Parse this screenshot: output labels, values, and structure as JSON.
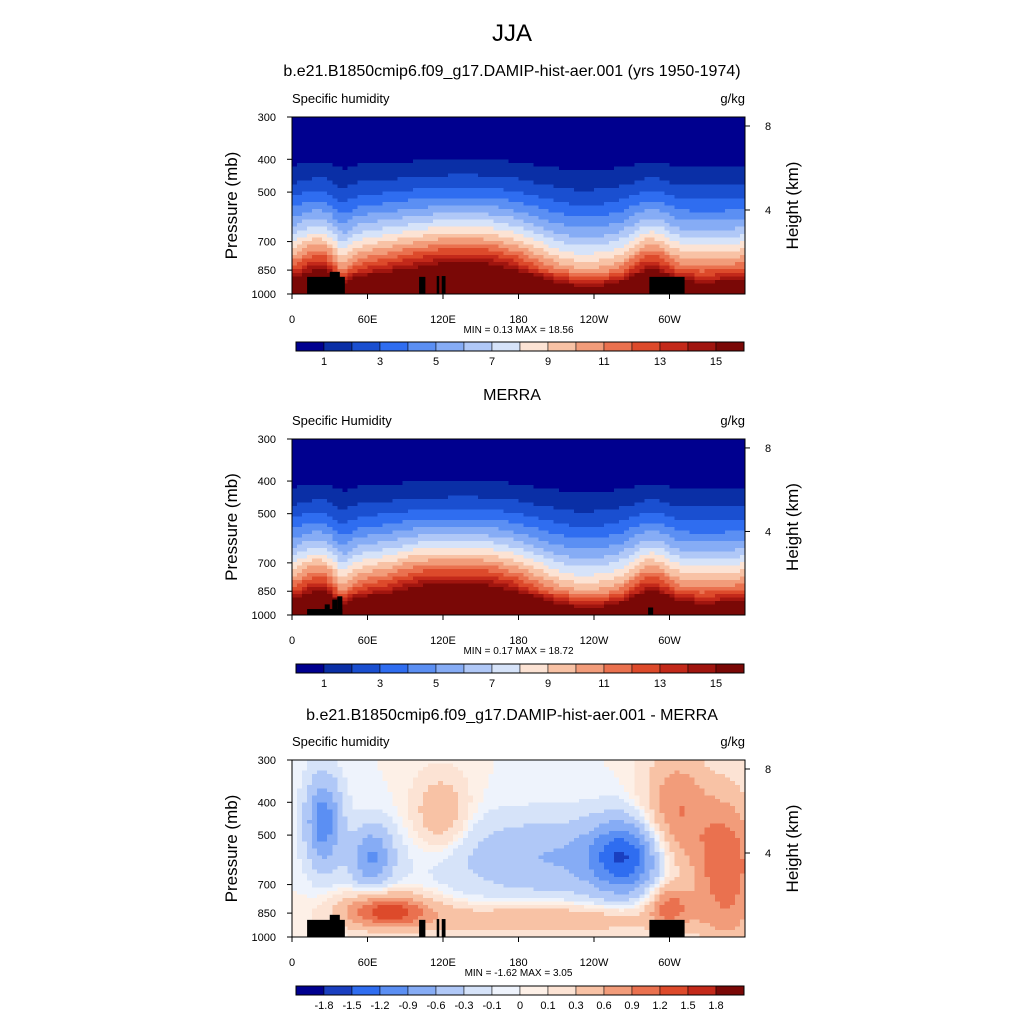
{
  "figure": {
    "main_title": "JJA",
    "colors": {
      "abs_palette": [
        "#00008f",
        "#0a2fa6",
        "#1a4fd0",
        "#2f6df0",
        "#5b8ff3",
        "#86acf5",
        "#b0c8f7",
        "#d6e3f9",
        "#fce3d4",
        "#f8c2a5",
        "#f29c7a",
        "#ea714f",
        "#dd4a2b",
        "#c3291a",
        "#a0150f",
        "#7a0806"
      ],
      "diff_palette": [
        "#00008f",
        "#1a3fc0",
        "#2f6df0",
        "#5b8ff3",
        "#86acf5",
        "#b0c8f7",
        "#d6e3f9",
        "#eef3fc",
        "#fdf0e7",
        "#fce3d4",
        "#f8c2a5",
        "#f29c7a",
        "#ea714f",
        "#dd4a2b",
        "#c3291a",
        "#7a0806"
      ],
      "topography": "#000000"
    }
  },
  "chart_data": [
    {
      "type": "heatmap",
      "title": "b.e21.B1850cmip6.f09_g17.DAMIP-hist-aer.001 (yrs 1950-1974)",
      "left_label": "Specific humidity",
      "units": "g/kg",
      "ylabel": "Pressure (mb)",
      "ylabel_right": "Height (km)",
      "x_ticks": [
        "0",
        "60E",
        "120E",
        "180",
        "120W",
        "60W"
      ],
      "x_tick_lon": [
        0,
        60,
        120,
        180,
        240,
        300
      ],
      "y_ticks": [
        300,
        400,
        500,
        700,
        850,
        1000
      ],
      "y_ticks_right": [
        8,
        4
      ],
      "ylim": [
        300,
        1000
      ],
      "xlim": [
        0,
        360
      ],
      "stats": "MIN =   0.13  MAX =  18.56",
      "min": 0.13,
      "max": 18.56,
      "colorbar_labels": [
        "1",
        "3",
        "5",
        "7",
        "9",
        "11",
        "13",
        "15"
      ],
      "kind": "abs",
      "topography": [
        [
          12,
          42,
          890
        ],
        [
          30,
          38,
          860
        ],
        [
          101,
          106,
          890
        ],
        [
          115,
          117,
          885
        ],
        [
          119,
          122,
          885
        ],
        [
          284,
          312,
          890
        ]
      ]
    },
    {
      "type": "heatmap",
      "title": "MERRA",
      "left_label": "Specific Humidity",
      "units": "g/kg",
      "ylabel": "Pressure (mb)",
      "ylabel_right": "Height (km)",
      "x_ticks": [
        "0",
        "60E",
        "120E",
        "180",
        "120W",
        "60W"
      ],
      "x_tick_lon": [
        0,
        60,
        120,
        180,
        240,
        300
      ],
      "y_ticks": [
        300,
        400,
        500,
        700,
        850,
        1000
      ],
      "y_ticks_right": [
        8,
        4
      ],
      "ylim": [
        300,
        1000
      ],
      "xlim": [
        0,
        360
      ],
      "stats": "MIN =   0.17  MAX =  18.72",
      "min": 0.17,
      "max": 18.72,
      "colorbar_labels": [
        "1",
        "3",
        "5",
        "7",
        "9",
        "11",
        "13",
        "15"
      ],
      "kind": "abs",
      "topography": [
        [
          12,
          40,
          960
        ],
        [
          26,
          30,
          930
        ],
        [
          32,
          36,
          900
        ],
        [
          36,
          40,
          880
        ],
        [
          283,
          287,
          950
        ]
      ]
    },
    {
      "type": "heatmap",
      "title": "b.e21.B1850cmip6.f09_g17.DAMIP-hist-aer.001 - MERRA",
      "left_label": "Specific humidity",
      "units": "g/kg",
      "ylabel": "Pressure (mb)",
      "ylabel_right": "Height (km)",
      "x_ticks": [
        "0",
        "60E",
        "120E",
        "180",
        "120W",
        "60W"
      ],
      "x_tick_lon": [
        0,
        60,
        120,
        180,
        240,
        300
      ],
      "y_ticks": [
        300,
        400,
        500,
        700,
        850,
        1000
      ],
      "y_ticks_right": [
        8,
        4
      ],
      "ylim": [
        300,
        1000
      ],
      "xlim": [
        0,
        360
      ],
      "stats": "MIN =  -1.62  MAX =   3.05",
      "min": -1.62,
      "max": 3.05,
      "colorbar_labels": [
        "-1.8",
        "-1.5",
        "-1.2",
        "-0.9",
        "-0.6",
        "-0.3",
        "-0.1",
        "0",
        "0.1",
        "0.3",
        "0.6",
        "0.9",
        "1.2",
        "1.5",
        "1.8"
      ],
      "kind": "diff",
      "topography": [
        [
          12,
          42,
          890
        ],
        [
          30,
          38,
          860
        ],
        [
          101,
          106,
          890
        ],
        [
          115,
          117,
          885
        ],
        [
          119,
          122,
          885
        ],
        [
          284,
          312,
          890
        ]
      ]
    }
  ]
}
